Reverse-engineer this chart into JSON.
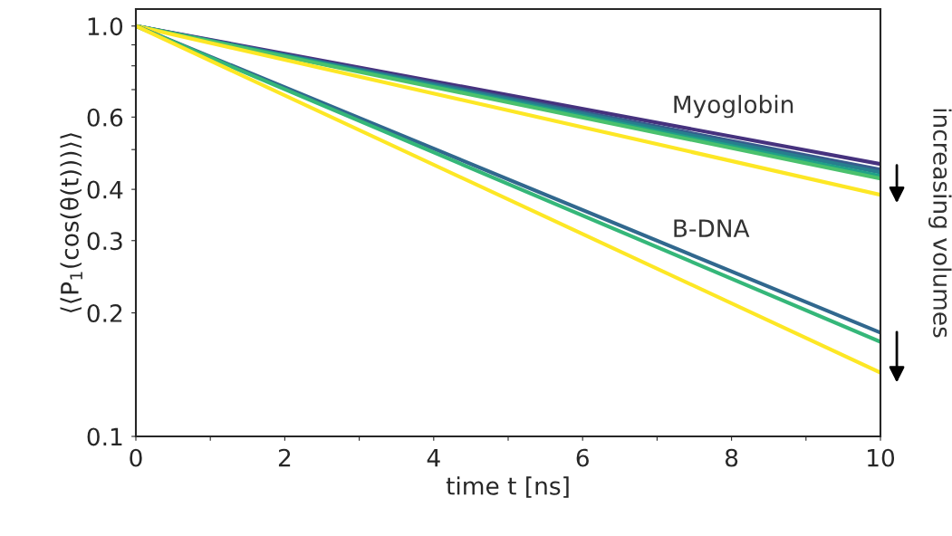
{
  "chart_data": {
    "type": "line",
    "xlabel": "time t [ns]",
    "ylabel": "⟨⟨P$_{1}$(cos(θ(t)))⟩⟩",
    "x": [
      0,
      10
    ],
    "log": "y",
    "grid": false,
    "marker": "none",
    "line_style": "solid",
    "xlim": [
      0,
      10
    ],
    "xticks": [
      0,
      {
        "value": 1,
        "label": null
      },
      2,
      {
        "value": 3,
        "label": null
      },
      4,
      {
        "value": 5,
        "label": null
      },
      6,
      {
        "value": 7,
        "label": null
      },
      8,
      {
        "value": 9,
        "label": null
      },
      10
    ],
    "ylim": [
      0.1,
      1.1
    ],
    "yticks": [
      0.1,
      0.2,
      0.3,
      0.4,
      {
        "value": 0.5,
        "label": null
      },
      0.6,
      {
        "value": 0.7,
        "label": null
      },
      {
        "value": 0.8,
        "label": null
      },
      {
        "value": 0.9,
        "label": null
      },
      {
        "value": 1.0,
        "label": "1.0"
      }
    ],
    "series": [
      {
        "color": "#46327e",
        "values": [
          1.0,
          0.461
        ]
      },
      {
        "color": "#365c8d",
        "values": [
          1.0,
          0.447
        ]
      },
      {
        "color": "#277f8e",
        "values": [
          1.0,
          0.44
        ]
      },
      {
        "color": "#1fa187",
        "values": [
          1.0,
          0.431
        ]
      },
      {
        "color": "#4ac16d",
        "values": [
          1.0,
          0.425
        ]
      },
      {
        "color": "#fde725",
        "values": [
          1.0,
          0.388
        ]
      },
      {
        "color": "#31688e",
        "values": [
          1.0,
          0.179
        ]
      },
      {
        "color": "#35b779",
        "values": [
          1.0,
          0.17
        ]
      },
      {
        "color": "#fde725",
        "values": [
          1.0,
          0.143
        ]
      }
    ],
    "annotations": [
      "Myoglobin",
      "B-DNA",
      "increasing volumes"
    ]
  }
}
